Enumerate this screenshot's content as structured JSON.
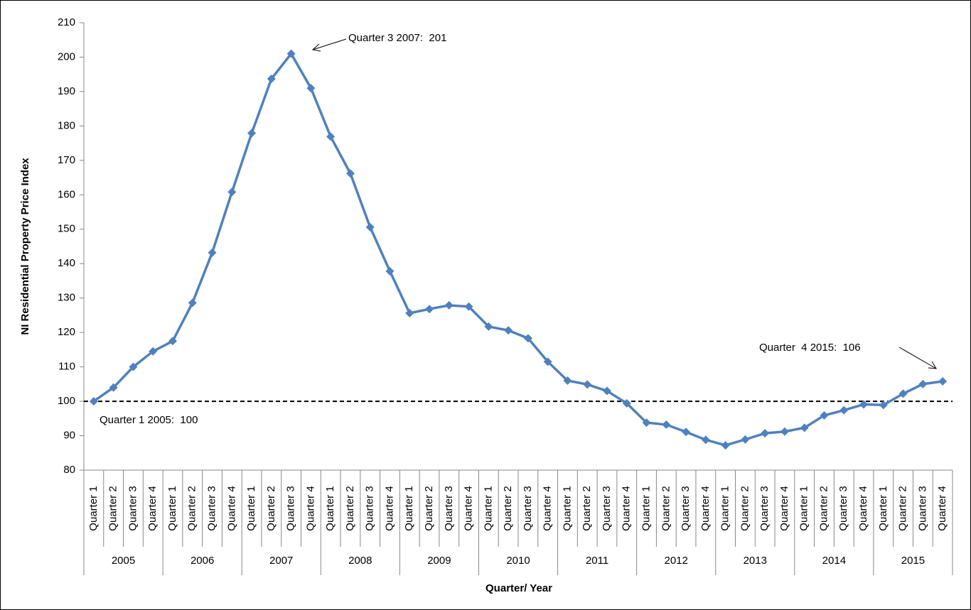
{
  "chart_data": {
    "type": "line",
    "x_label": "Quarter/ Year",
    "y_label": "NI Residential Property Price Index",
    "categories": [
      "Quarter 1",
      "Quarter 2",
      "Quarter 3",
      "Quarter 4",
      "Quarter 1",
      "Quarter 2",
      "Quarter 3",
      "Quarter 4",
      "Quarter 1",
      "Quarter 2",
      "Quarter 3",
      "Quarter 4",
      "Quarter 1",
      "Quarter 2",
      "Quarter 3",
      "Quarter 4",
      "Quarter 1",
      "Quarter 2",
      "Quarter 3",
      "Quarter 4",
      "Quarter 1",
      "Quarter 2",
      "Quarter 3",
      "Quarter 4",
      "Quarter 1",
      "Quarter 2",
      "Quarter 3",
      "Quarter 4",
      "Quarter 1",
      "Quarter 2",
      "Quarter 3",
      "Quarter 4",
      "Quarter 1",
      "Quarter 2",
      "Quarter 3",
      "Quarter 4",
      "Quarter 1",
      "Quarter 2",
      "Quarter 3",
      "Quarter 4",
      "Quarter 1",
      "Quarter 2",
      "Quarter 3",
      "Quarter 4"
    ],
    "years": [
      "2005",
      "2006",
      "2007",
      "2008",
      "2009",
      "2010",
      "2011",
      "2012",
      "2013",
      "2014",
      "2015"
    ],
    "values": [
      100,
      104,
      110,
      114.5,
      117.5,
      128.6,
      143.2,
      160.8,
      177.9,
      193.7,
      201,
      191,
      176.9,
      166.2,
      150.6,
      137.8,
      125.6,
      126.8,
      127.9,
      127.5,
      121.7,
      120.6,
      118.3,
      111.5,
      106,
      104.9,
      103,
      99.4,
      93.8,
      93.2,
      91.1,
      88.8,
      87.2,
      88.9,
      90.7,
      91.2,
      92.3,
      95.9,
      97.4,
      99.1,
      98.9,
      102.2,
      105,
      105.8
    ],
    "color": "#4f81bd",
    "reference_line": 100,
    "annotations": [
      "Quarter 3 2007:  201",
      "Quarter  4 2015:  106",
      "Quarter 1 2005:  100"
    ],
    "ylim": [
      80,
      210
    ],
    "yticks": [
      80,
      90,
      100,
      110,
      120,
      130,
      140,
      150,
      160,
      170,
      180,
      190,
      200,
      210
    ]
  }
}
